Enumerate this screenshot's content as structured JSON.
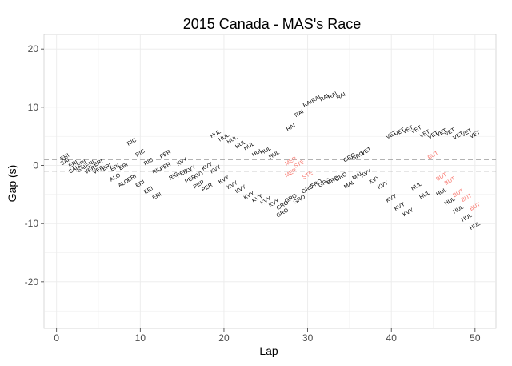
{
  "chart_data": {
    "type": "scatter",
    "title": "2015 Canada - MAS's Race",
    "xlabel": "Lap",
    "ylabel": "Gap (s)",
    "xlim": [
      -1.5,
      52.5
    ],
    "ylim": [
      -28,
      22.5
    ],
    "xticks": [
      0,
      10,
      20,
      30,
      40,
      50
    ],
    "yticks": [
      -20,
      -10,
      0,
      10,
      20
    ],
    "grid": true,
    "legend": "none",
    "hlines": [
      1,
      -1
    ],
    "colors": {
      "default": "#000000",
      "highlight": "#f8766d",
      "hline": "#999999",
      "panel": "#ebebeb"
    },
    "points": [
      {
        "x": 1,
        "y": 1.4,
        "label": "ERI"
      },
      {
        "x": 1,
        "y": 0.6,
        "label": "SAI"
      },
      {
        "x": 2,
        "y": 0.2,
        "label": "ERI"
      },
      {
        "x": 2,
        "y": -0.8,
        "label": "SAI"
      },
      {
        "x": 3,
        "y": 0.3,
        "label": "ERI"
      },
      {
        "x": 3,
        "y": -0.6,
        "label": "SAI"
      },
      {
        "x": 4,
        "y": 0.2,
        "label": "ERI"
      },
      {
        "x": 4,
        "y": -0.8,
        "label": "VER"
      },
      {
        "x": 5,
        "y": 0.4,
        "label": "ERI"
      },
      {
        "x": 5,
        "y": -0.8,
        "label": "VER"
      },
      {
        "x": 6,
        "y": -0.3,
        "label": "ERI"
      },
      {
        "x": 7,
        "y": -0.4,
        "label": "ERI"
      },
      {
        "x": 7,
        "y": -2.1,
        "label": "ALO"
      },
      {
        "x": 8,
        "y": -0.2,
        "label": "ERI"
      },
      {
        "x": 8,
        "y": -3.1,
        "label": "ALO"
      },
      {
        "x": 9,
        "y": -2.2,
        "label": "ERI"
      },
      {
        "x": 9,
        "y": 4.0,
        "label": "RIC"
      },
      {
        "x": 10,
        "y": 2.1,
        "label": "RIC"
      },
      {
        "x": 10,
        "y": -3.2,
        "label": "ERI"
      },
      {
        "x": 11,
        "y": 0.6,
        "label": "RIC"
      },
      {
        "x": 11,
        "y": -4.3,
        "label": "ERI"
      },
      {
        "x": 12,
        "y": -5.3,
        "label": "ERI"
      },
      {
        "x": 12,
        "y": -0.9,
        "label": "RIC"
      },
      {
        "x": 13,
        "y": 1.9,
        "label": "PER"
      },
      {
        "x": 13,
        "y": -0.2,
        "label": "PER"
      },
      {
        "x": 14,
        "y": -1.9,
        "label": "RIC"
      },
      {
        "x": 15,
        "y": -1.4,
        "label": "PER"
      },
      {
        "x": 15,
        "y": 0.6,
        "label": "KVY"
      },
      {
        "x": 16,
        "y": -0.7,
        "label": "KVY"
      },
      {
        "x": 16,
        "y": -2.4,
        "label": "PER"
      },
      {
        "x": 17,
        "y": -1.6,
        "label": "KVY"
      },
      {
        "x": 17,
        "y": -3.3,
        "label": "PER"
      },
      {
        "x": 18,
        "y": -0.2,
        "label": "KVY"
      },
      {
        "x": 18,
        "y": -3.8,
        "label": "PER"
      },
      {
        "x": 19,
        "y": -0.7,
        "label": "KVY"
      },
      {
        "x": 19,
        "y": 5.4,
        "label": "HUL"
      },
      {
        "x": 20,
        "y": 4.8,
        "label": "HUL"
      },
      {
        "x": 20,
        "y": -2.5,
        "label": "KVY"
      },
      {
        "x": 21,
        "y": 4.4,
        "label": "HUL"
      },
      {
        "x": 21,
        "y": -3.4,
        "label": "KVY"
      },
      {
        "x": 22,
        "y": 3.6,
        "label": "HUL"
      },
      {
        "x": 22,
        "y": -4.1,
        "label": "KVY"
      },
      {
        "x": 23,
        "y": 3.3,
        "label": "HUL"
      },
      {
        "x": 23,
        "y": -5.2,
        "label": "KVY"
      },
      {
        "x": 24,
        "y": 2.2,
        "label": "HUL"
      },
      {
        "x": 24,
        "y": -5.7,
        "label": "KVY"
      },
      {
        "x": 25,
        "y": 2.5,
        "label": "HUL"
      },
      {
        "x": 25,
        "y": -6.1,
        "label": "KVY"
      },
      {
        "x": 26,
        "y": 1.8,
        "label": "HUL"
      },
      {
        "x": 26,
        "y": -6.5,
        "label": "KVY"
      },
      {
        "x": 27,
        "y": -6.9,
        "label": "GRO"
      },
      {
        "x": 27,
        "y": -8.2,
        "label": "GRO"
      },
      {
        "x": 28,
        "y": 6.5,
        "label": "RAI"
      },
      {
        "x": 28,
        "y": 0.7,
        "label": "MER"
      },
      {
        "x": 28,
        "y": -1.3,
        "label": "MER"
      },
      {
        "x": 28,
        "y": -5.7,
        "label": "GRO"
      },
      {
        "x": 29,
        "y": 8.9,
        "label": "RAI"
      },
      {
        "x": 29,
        "y": 0.2,
        "label": "STE"
      },
      {
        "x": 29,
        "y": -5.9,
        "label": "GRO"
      },
      {
        "x": 30,
        "y": 10.6,
        "label": "RAI"
      },
      {
        "x": 30,
        "y": -1.7,
        "label": "STE"
      },
      {
        "x": 30,
        "y": -4.1,
        "label": "GRO"
      },
      {
        "x": 31,
        "y": 11.4,
        "label": "RAI"
      },
      {
        "x": 31,
        "y": -3.2,
        "label": "GRO"
      },
      {
        "x": 32,
        "y": 11.6,
        "label": "RAI"
      },
      {
        "x": 32,
        "y": -3.0,
        "label": "GRO"
      },
      {
        "x": 33,
        "y": 12.0,
        "label": "RAI"
      },
      {
        "x": 33,
        "y": -2.6,
        "label": "GRO"
      },
      {
        "x": 34,
        "y": 11.9,
        "label": "RAI"
      },
      {
        "x": 34,
        "y": -2.0,
        "label": "GRO"
      },
      {
        "x": 35,
        "y": 1.3,
        "label": "GRO"
      },
      {
        "x": 35,
        "y": -3.3,
        "label": "MAL"
      },
      {
        "x": 36,
        "y": 1.6,
        "label": "GRO"
      },
      {
        "x": 36,
        "y": -1.8,
        "label": "MAL"
      },
      {
        "x": 37,
        "y": 2.4,
        "label": "VET"
      },
      {
        "x": 37,
        "y": -1.4,
        "label": "KVY"
      },
      {
        "x": 38,
        "y": -2.5,
        "label": "KVY"
      },
      {
        "x": 39,
        "y": -3.4,
        "label": "KVY"
      },
      {
        "x": 40,
        "y": 5.2,
        "label": "VET"
      },
      {
        "x": 40,
        "y": -5.7,
        "label": "KVY"
      },
      {
        "x": 41,
        "y": 5.7,
        "label": "VET"
      },
      {
        "x": 41,
        "y": -7.1,
        "label": "KVY"
      },
      {
        "x": 42,
        "y": 6.1,
        "label": "VET"
      },
      {
        "x": 42,
        "y": -8.1,
        "label": "KVY"
      },
      {
        "x": 43,
        "y": 6.1,
        "label": "VET"
      },
      {
        "x": 43,
        "y": -3.6,
        "label": "HUL"
      },
      {
        "x": 44,
        "y": 5.4,
        "label": "VET"
      },
      {
        "x": 44,
        "y": -5.1,
        "label": "HUL"
      },
      {
        "x": 45,
        "y": 5.2,
        "label": "VET"
      },
      {
        "x": 45,
        "y": 1.7,
        "label": "BUT"
      },
      {
        "x": 46,
        "y": 5.6,
        "label": "VET"
      },
      {
        "x": 46,
        "y": -2.0,
        "label": "BUT"
      },
      {
        "x": 46,
        "y": -4.6,
        "label": "HUL"
      },
      {
        "x": 47,
        "y": 5.7,
        "label": "VET"
      },
      {
        "x": 47,
        "y": -2.7,
        "label": "BUT"
      },
      {
        "x": 47,
        "y": -6.2,
        "label": "HUL"
      },
      {
        "x": 48,
        "y": 5.1,
        "label": "VET"
      },
      {
        "x": 48,
        "y": -4.8,
        "label": "BUT"
      },
      {
        "x": 48,
        "y": -7.6,
        "label": "HUL"
      },
      {
        "x": 49,
        "y": 5.6,
        "label": "VET"
      },
      {
        "x": 49,
        "y": -5.6,
        "label": "BUT"
      },
      {
        "x": 49,
        "y": -9.0,
        "label": "HUL"
      },
      {
        "x": 50,
        "y": 5.3,
        "label": "VET"
      },
      {
        "x": 50,
        "y": -7.1,
        "label": "BUT"
      },
      {
        "x": 50,
        "y": -10.4,
        "label": "HUL"
      }
    ],
    "highlight_labels": [
      "MER",
      "STE",
      "BUT"
    ]
  }
}
